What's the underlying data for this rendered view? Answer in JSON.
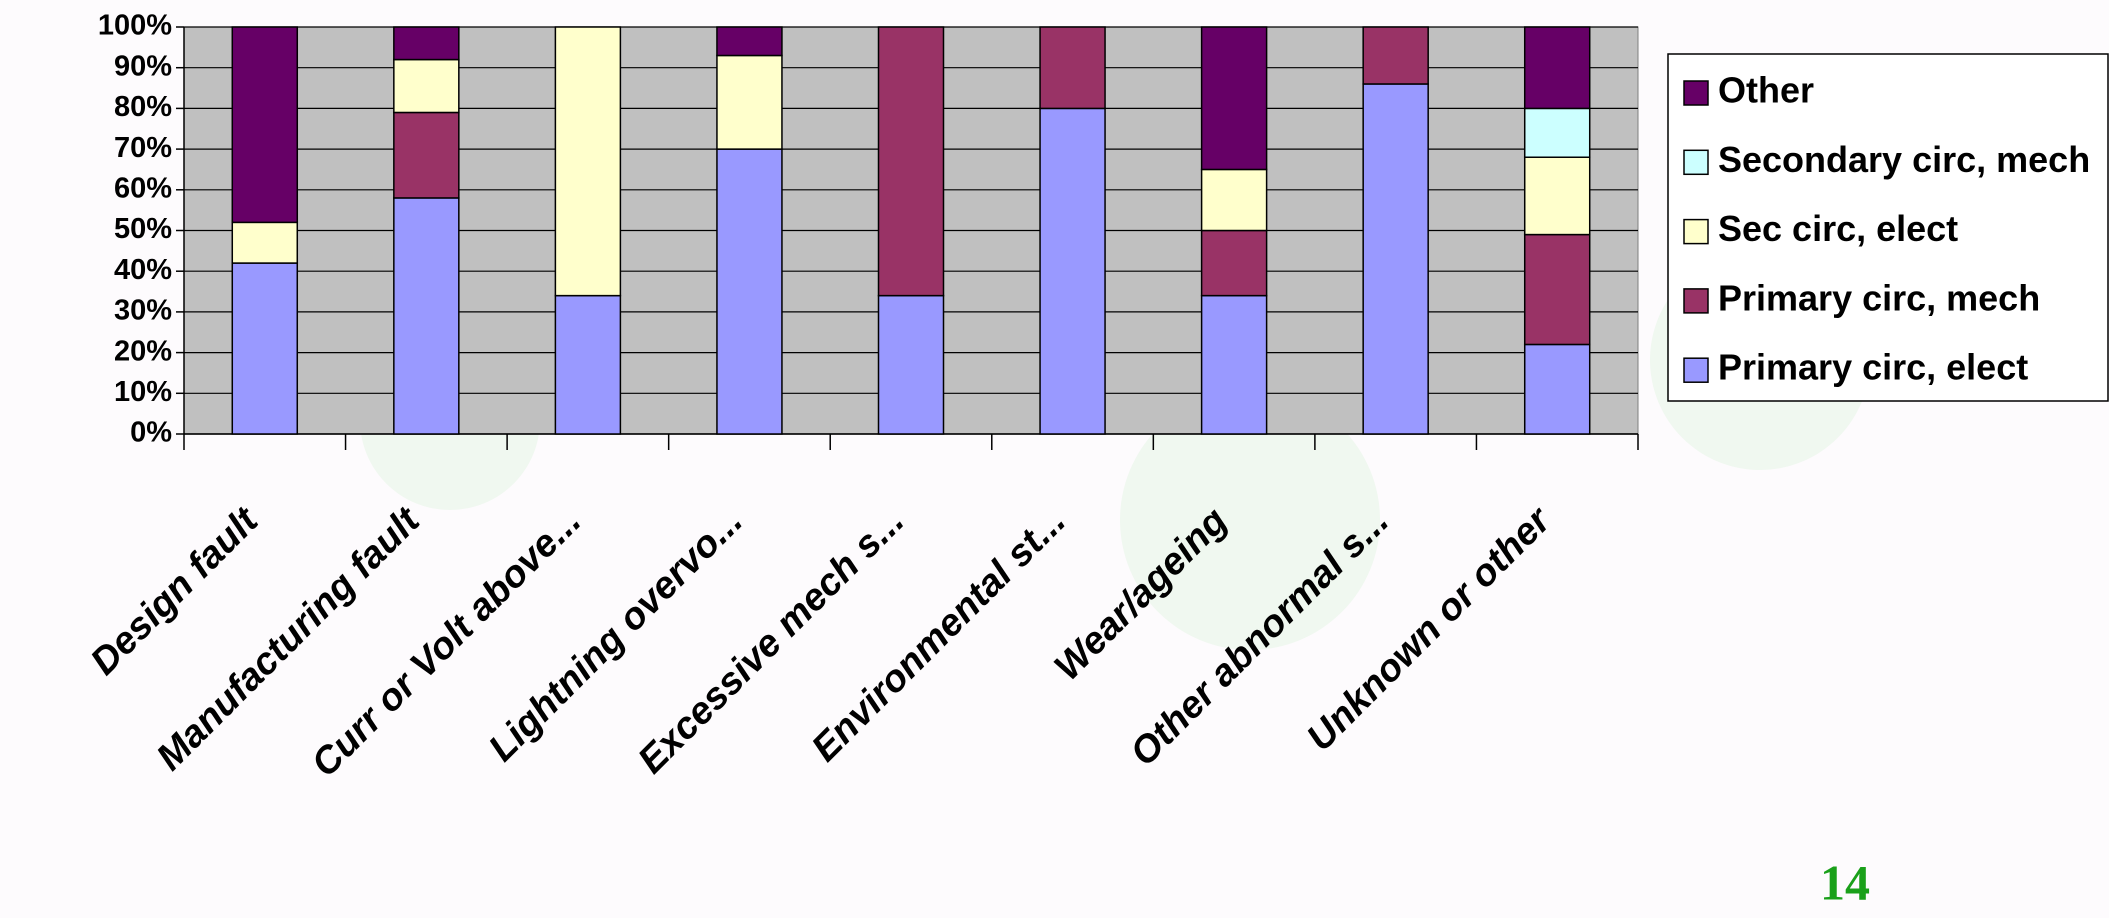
{
  "chart_data": {
    "type": "bar",
    "stacked": true,
    "categories": [
      "Design fault",
      "Manufacturing fault",
      "Curr or Volt above...",
      "Lightning  overvo...",
      "Excessive mech s...",
      "Environmental  st...",
      "Wear/ageing",
      "Other abnormal s...",
      "Unknown or other"
    ],
    "series": [
      {
        "name": "Primary circ, elect",
        "color": "#9999ff",
        "values": [
          42,
          58,
          34,
          70,
          34,
          80,
          34,
          86,
          22
        ]
      },
      {
        "name": "Primary circ, mech",
        "color": "#993366",
        "values": [
          0,
          21,
          0,
          0,
          66,
          20,
          16,
          14,
          27
        ]
      },
      {
        "name": "Sec circ, elect",
        "color": "#ffffcc",
        "values": [
          10,
          13,
          66,
          23,
          0,
          0,
          15,
          0,
          19
        ]
      },
      {
        "name": "Secondary circ, mech",
        "color": "#ccffff",
        "values": [
          0,
          0,
          0,
          0,
          0,
          0,
          0,
          0,
          12
        ]
      },
      {
        "name": "Other",
        "color": "#660066",
        "values": [
          48,
          8,
          0,
          7,
          0,
          0,
          35,
          0,
          20
        ]
      }
    ],
    "ylim": [
      0,
      100
    ],
    "yticks": [
      {
        "value": 0,
        "label": "0%"
      },
      {
        "value": 10,
        "label": "10%"
      },
      {
        "value": 20,
        "label": "20%"
      },
      {
        "value": 30,
        "label": "30%"
      },
      {
        "value": 40,
        "label": "40%"
      },
      {
        "value": 50,
        "label": "50%"
      },
      {
        "value": 60,
        "label": "60%"
      },
      {
        "value": 70,
        "label": "70%"
      },
      {
        "value": 80,
        "label": "80%"
      },
      {
        "value": 90,
        "label": "90%"
      },
      {
        "value": 100,
        "label": "100%"
      }
    ],
    "grid": true,
    "legend": "right",
    "plot_background": "#c0c0c0"
  },
  "page_number": "14"
}
